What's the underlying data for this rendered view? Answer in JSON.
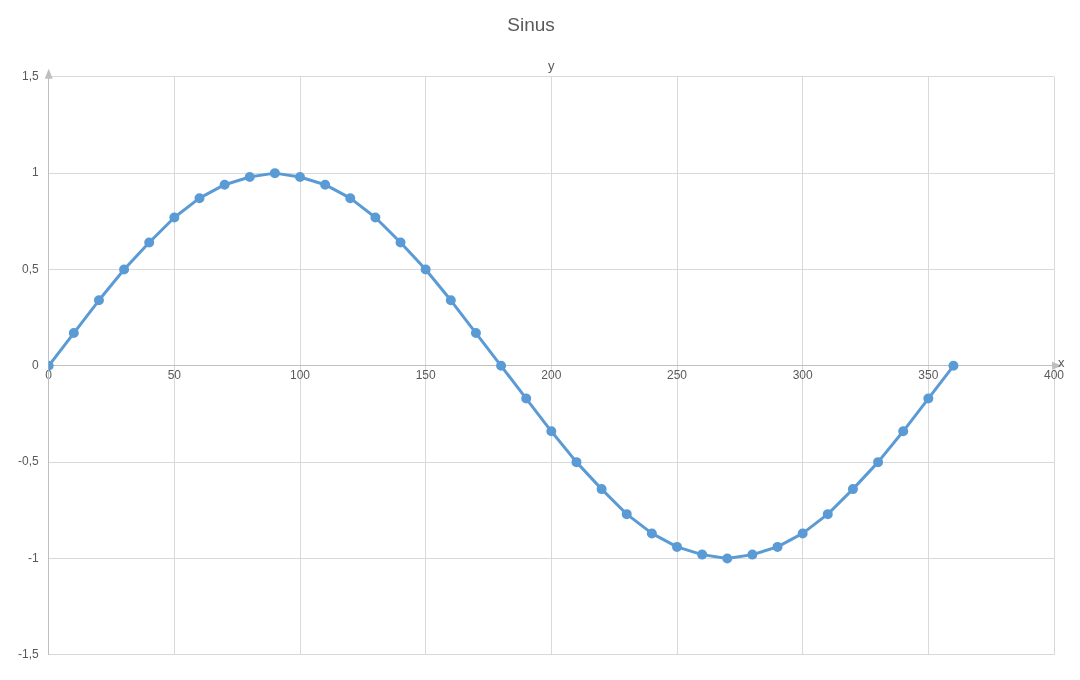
{
  "chart_data": {
    "type": "line",
    "title": "Sinus",
    "xlabel": "x",
    "ylabel": "y",
    "x": [
      0,
      10,
      20,
      30,
      40,
      50,
      60,
      70,
      80,
      90,
      100,
      110,
      120,
      130,
      140,
      150,
      160,
      170,
      180,
      190,
      200,
      210,
      220,
      230,
      240,
      250,
      260,
      270,
      280,
      290,
      300,
      310,
      320,
      330,
      340,
      350,
      360
    ],
    "series": [
      {
        "color": "#5b9bd5",
        "values": [
          0,
          0.17,
          0.34,
          0.5,
          0.64,
          0.77,
          0.87,
          0.94,
          0.98,
          1,
          0.98,
          0.94,
          0.87,
          0.77,
          0.64,
          0.5,
          0.34,
          0.17,
          0,
          -0.17,
          -0.34,
          -0.5,
          -0.64,
          -0.77,
          -0.87,
          -0.94,
          -0.98,
          -1,
          -0.98,
          -0.94,
          -0.87,
          -0.77,
          -0.64,
          -0.5,
          -0.34,
          -0.17,
          0
        ]
      }
    ],
    "xlim": [
      0,
      400
    ],
    "xticks": [
      0,
      50,
      100,
      150,
      200,
      250,
      300,
      350,
      400
    ],
    "ylim": [
      -1.5,
      1.5
    ],
    "yticks": [
      {
        "value": -1.5,
        "label": "-1,5"
      },
      {
        "value": -1,
        "label": "-1"
      },
      {
        "value": -0.5,
        "label": "-0,5"
      },
      {
        "value": 0,
        "label": "0"
      },
      {
        "value": 0.5,
        "label": "0,5"
      },
      {
        "value": 1,
        "label": "1"
      },
      {
        "value": 1.5,
        "label": "1,5"
      }
    ],
    "grid": true,
    "legend": false,
    "marker": "circle",
    "line_style": "solid"
  }
}
